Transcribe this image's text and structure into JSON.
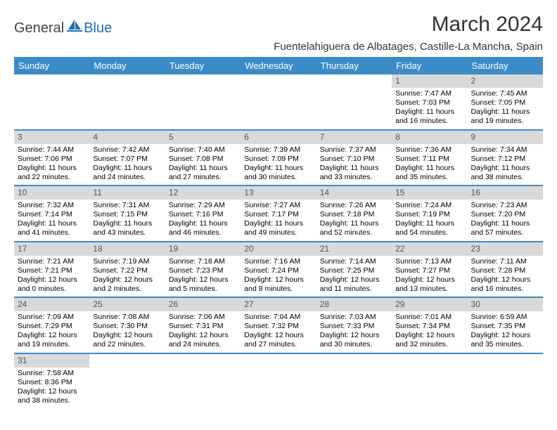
{
  "brand": {
    "general": "General",
    "blue": "Blue"
  },
  "title": "March 2024",
  "location": "Fuentelahiguera de Albatages, Castille-La Mancha, Spain",
  "colors": {
    "header_bg": "#3b8bc7",
    "header_fg": "#ffffff",
    "daybar_bg": "#d9d9d9",
    "daybar_fg": "#555555",
    "row_border": "#3b8bc7",
    "page_bg": "#ffffff",
    "text": "#000000"
  },
  "typography": {
    "title_fontsize": 30,
    "location_fontsize": 15,
    "header_fontsize": 13,
    "daynum_fontsize": 12,
    "cell_fontsize": 10.5
  },
  "weekdays": [
    "Sunday",
    "Monday",
    "Tuesday",
    "Wednesday",
    "Thursday",
    "Friday",
    "Saturday"
  ],
  "weeks": [
    [
      null,
      null,
      null,
      null,
      null,
      {
        "n": "1",
        "sunrise": "7:47 AM",
        "sunset": "7:03 PM",
        "day_h": "11",
        "day_m": "16"
      },
      {
        "n": "2",
        "sunrise": "7:45 AM",
        "sunset": "7:05 PM",
        "day_h": "11",
        "day_m": "19"
      }
    ],
    [
      {
        "n": "3",
        "sunrise": "7:44 AM",
        "sunset": "7:06 PM",
        "day_h": "11",
        "day_m": "22"
      },
      {
        "n": "4",
        "sunrise": "7:42 AM",
        "sunset": "7:07 PM",
        "day_h": "11",
        "day_m": "24"
      },
      {
        "n": "5",
        "sunrise": "7:40 AM",
        "sunset": "7:08 PM",
        "day_h": "11",
        "day_m": "27"
      },
      {
        "n": "6",
        "sunrise": "7:39 AM",
        "sunset": "7:09 PM",
        "day_h": "11",
        "day_m": "30"
      },
      {
        "n": "7",
        "sunrise": "7:37 AM",
        "sunset": "7:10 PM",
        "day_h": "11",
        "day_m": "33"
      },
      {
        "n": "8",
        "sunrise": "7:36 AM",
        "sunset": "7:11 PM",
        "day_h": "11",
        "day_m": "35"
      },
      {
        "n": "9",
        "sunrise": "7:34 AM",
        "sunset": "7:12 PM",
        "day_h": "11",
        "day_m": "38"
      }
    ],
    [
      {
        "n": "10",
        "sunrise": "7:32 AM",
        "sunset": "7:14 PM",
        "day_h": "11",
        "day_m": "41"
      },
      {
        "n": "11",
        "sunrise": "7:31 AM",
        "sunset": "7:15 PM",
        "day_h": "11",
        "day_m": "43"
      },
      {
        "n": "12",
        "sunrise": "7:29 AM",
        "sunset": "7:16 PM",
        "day_h": "11",
        "day_m": "46"
      },
      {
        "n": "13",
        "sunrise": "7:27 AM",
        "sunset": "7:17 PM",
        "day_h": "11",
        "day_m": "49"
      },
      {
        "n": "14",
        "sunrise": "7:26 AM",
        "sunset": "7:18 PM",
        "day_h": "11",
        "day_m": "52"
      },
      {
        "n": "15",
        "sunrise": "7:24 AM",
        "sunset": "7:19 PM",
        "day_h": "11",
        "day_m": "54"
      },
      {
        "n": "16",
        "sunrise": "7:23 AM",
        "sunset": "7:20 PM",
        "day_h": "11",
        "day_m": "57"
      }
    ],
    [
      {
        "n": "17",
        "sunrise": "7:21 AM",
        "sunset": "7:21 PM",
        "day_h": "12",
        "day_m": "0"
      },
      {
        "n": "18",
        "sunrise": "7:19 AM",
        "sunset": "7:22 PM",
        "day_h": "12",
        "day_m": "2"
      },
      {
        "n": "19",
        "sunrise": "7:18 AM",
        "sunset": "7:23 PM",
        "day_h": "12",
        "day_m": "5"
      },
      {
        "n": "20",
        "sunrise": "7:16 AM",
        "sunset": "7:24 PM",
        "day_h": "12",
        "day_m": "8"
      },
      {
        "n": "21",
        "sunrise": "7:14 AM",
        "sunset": "7:25 PM",
        "day_h": "12",
        "day_m": "11"
      },
      {
        "n": "22",
        "sunrise": "7:13 AM",
        "sunset": "7:27 PM",
        "day_h": "12",
        "day_m": "13"
      },
      {
        "n": "23",
        "sunrise": "7:11 AM",
        "sunset": "7:28 PM",
        "day_h": "12",
        "day_m": "16"
      }
    ],
    [
      {
        "n": "24",
        "sunrise": "7:09 AM",
        "sunset": "7:29 PM",
        "day_h": "12",
        "day_m": "19"
      },
      {
        "n": "25",
        "sunrise": "7:08 AM",
        "sunset": "7:30 PM",
        "day_h": "12",
        "day_m": "22"
      },
      {
        "n": "26",
        "sunrise": "7:06 AM",
        "sunset": "7:31 PM",
        "day_h": "12",
        "day_m": "24"
      },
      {
        "n": "27",
        "sunrise": "7:04 AM",
        "sunset": "7:32 PM",
        "day_h": "12",
        "day_m": "27"
      },
      {
        "n": "28",
        "sunrise": "7:03 AM",
        "sunset": "7:33 PM",
        "day_h": "12",
        "day_m": "30"
      },
      {
        "n": "29",
        "sunrise": "7:01 AM",
        "sunset": "7:34 PM",
        "day_h": "12",
        "day_m": "32"
      },
      {
        "n": "30",
        "sunrise": "6:59 AM",
        "sunset": "7:35 PM",
        "day_h": "12",
        "day_m": "35"
      }
    ],
    [
      {
        "n": "31",
        "sunrise": "7:58 AM",
        "sunset": "8:36 PM",
        "day_h": "12",
        "day_m": "38"
      },
      null,
      null,
      null,
      null,
      null,
      null
    ]
  ]
}
